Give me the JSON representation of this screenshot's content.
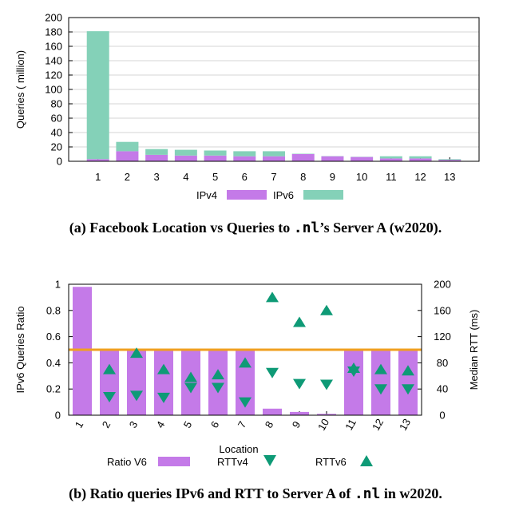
{
  "colors": {
    "ipv4": "#c47ae8",
    "ipv6": "#84d1b8",
    "ratio": "#c47ae8",
    "rtt": "#0e9a76",
    "reference_line": "#f0a020",
    "left_axis_text": "#c23ad6",
    "right_axis_text": "#11a27f"
  },
  "chart_data": [
    {
      "type": "bar",
      "stacked": true,
      "caption": {
        "prefix": "(a) Facebook Location vs Queries to ",
        "code": ".nl",
        "suffix": "’s Server A (w2020)."
      },
      "xlabel": "",
      "ylabel": "Queries ( million)",
      "ylim": [
        0,
        200
      ],
      "yticks": [
        0,
        20,
        40,
        60,
        80,
        100,
        120,
        140,
        160,
        180,
        200
      ],
      "categories": [
        "1",
        "2",
        "3",
        "4",
        "5",
        "6",
        "7",
        "8",
        "9",
        "10",
        "11",
        "12",
        "13"
      ],
      "series": [
        {
          "name": "IPv4",
          "values": [
            3,
            14,
            9,
            8,
            8,
            7,
            7,
            10,
            7,
            6,
            4,
            4,
            2
          ]
        },
        {
          "name": "IPv6",
          "values": [
            178,
            13,
            8,
            8,
            7,
            7,
            7,
            0.5,
            0.3,
            0.3,
            3,
            3,
            1
          ]
        }
      ],
      "legend_position": "bottom"
    },
    {
      "type": "bar",
      "caption": {
        "prefix": "(b) Ratio queries IPv6 and RTT to Server A of ",
        "code": ".nl",
        "suffix": " in w2020."
      },
      "xlabel": "Location",
      "ylabel": "IPv6 Queries Ratio",
      "ylabel_right": "Median RTT (ms)",
      "ylim": [
        0,
        1
      ],
      "yticks": [
        "0",
        "0.2",
        "0.4",
        "0.6",
        "0.8",
        "1"
      ],
      "ylim_right": [
        0,
        200
      ],
      "yticks_right": [
        "0",
        "40",
        "80",
        "120",
        "160",
        "200"
      ],
      "categories": [
        "1",
        "2",
        "3",
        "4",
        "5",
        "6",
        "7",
        "8",
        "9",
        "10",
        "11",
        "12",
        "13"
      ],
      "reference_line": 0.5,
      "series": [
        {
          "name": "Ratio V6",
          "axis": "left",
          "mark": "bar",
          "values": [
            0.98,
            0.5,
            0.5,
            0.5,
            0.5,
            0.5,
            0.5,
            0.05,
            0.025,
            0.01,
            0.5,
            0.5,
            0.5
          ]
        },
        {
          "name": "RTTv4",
          "axis": "right",
          "mark": "triangle-down",
          "values": [
            null,
            28,
            30,
            27,
            42,
            42,
            20,
            65,
            48,
            47,
            67,
            40,
            40
          ]
        },
        {
          "name": "RTTv6",
          "axis": "right",
          "mark": "triangle-up",
          "values": [
            null,
            70,
            95,
            70,
            58,
            62,
            80,
            180,
            142,
            160,
            72,
            70,
            68
          ]
        }
      ],
      "legend_position": "bottom"
    }
  ]
}
